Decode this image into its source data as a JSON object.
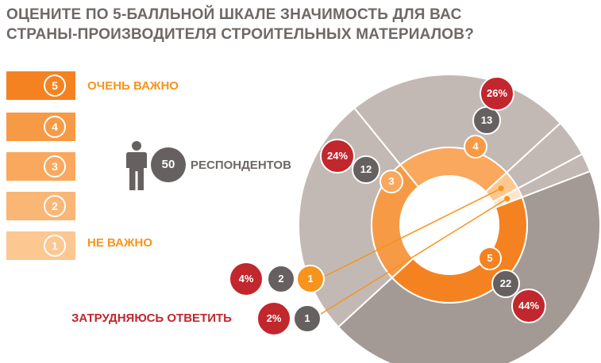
{
  "title": [
    "ОЦЕНИТЕ ПО 5-БАЛЛЬНОЙ ШКАЛЕ ЗНАЧИМОСТЬ ДЛЯ ВАС",
    "СТРАНЫ-ПРОИЗВОДИТЕЛЯ СТРОИТЕЛЬНЫХ МАТЕРИАЛОВ?"
  ],
  "scale": {
    "items": [
      {
        "score": "5",
        "color": "#f58220"
      },
      {
        "score": "4",
        "color": "#f79a45"
      },
      {
        "score": "3",
        "color": "#f9a85e"
      },
      {
        "score": "2",
        "color": "#fab675"
      },
      {
        "score": "1",
        "color": "#fcc790"
      }
    ],
    "top_label": "ОЧЕНЬ ВАЖНО",
    "bottom_label": "НЕ ВАЖНО"
  },
  "respondents": {
    "count": "50",
    "label": "РЕСПОНДЕНТОВ"
  },
  "colors": {
    "accent": "#f7941d",
    "red": "#c1272d",
    "dark_gray": "#666160",
    "outer_ring": "#a39995",
    "outer_ring_light": "#c2b9b5"
  },
  "chart_data": {
    "type": "donut",
    "title": "ОЦЕНИТЕ ПО 5-БАЛЛЬНОЙ ШКАЛЕ ЗНАЧИМОСТЬ ДЛЯ ВАС СТРАНЫ-ПРОИЗВОДИТЕЛЯ СТРОИТЕЛЬНЫХ МАТЕРИАЛОВ?",
    "total_respondents": 50,
    "categories": [
      "5",
      "4",
      "3",
      "1",
      "ЗАТРУДНЯЮСЬ ОТВЕТИТЬ"
    ],
    "counts": [
      22,
      13,
      12,
      2,
      1
    ],
    "percents": [
      44,
      26,
      24,
      4,
      2
    ],
    "labels": {
      "counts": [
        "22",
        "13",
        "12",
        "2",
        "1"
      ],
      "percents": [
        "44%",
        "26%",
        "24%",
        "4%",
        "2%"
      ],
      "scores": [
        "5",
        "4",
        "3",
        "1"
      ],
      "hard_to_answer": "ЗАТРУДНЯЮСЬ ОТВЕТИТЬ"
    },
    "colors": [
      "#f58220",
      "#f79a45",
      "#f9a85e",
      "#fcc790",
      "#fde6cc"
    ]
  }
}
